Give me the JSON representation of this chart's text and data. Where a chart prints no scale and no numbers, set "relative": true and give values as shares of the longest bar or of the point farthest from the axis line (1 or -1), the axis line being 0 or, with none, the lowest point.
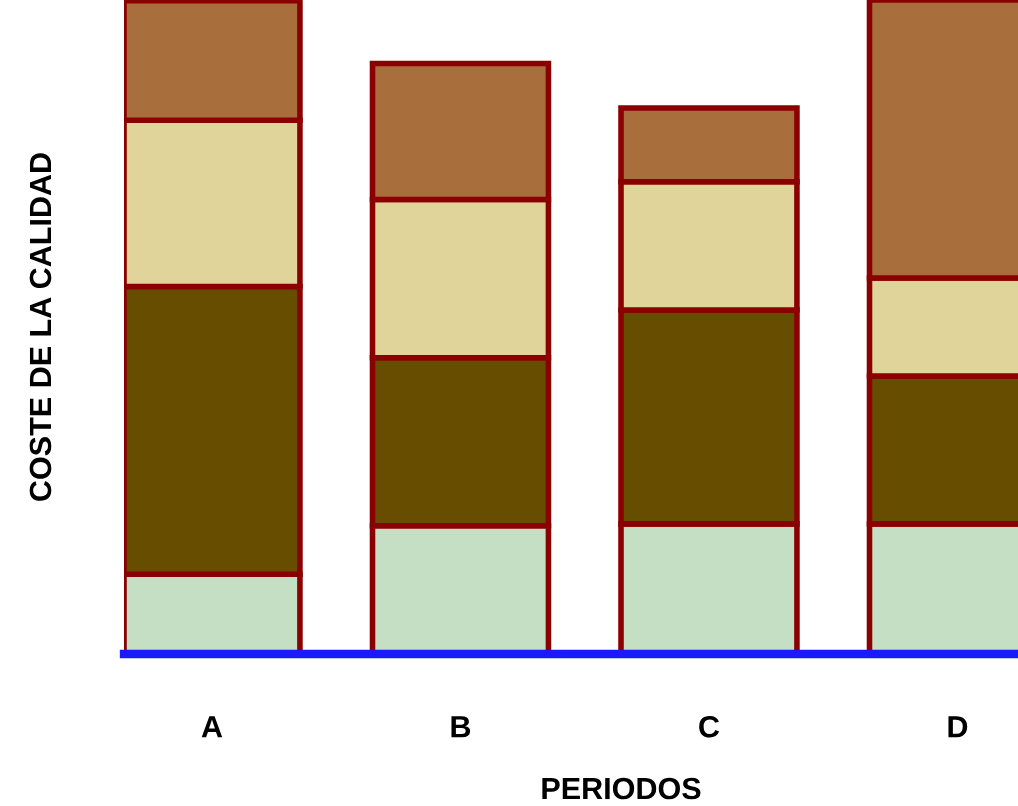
{
  "chart_data": {
    "type": "bar",
    "stacked": true,
    "relative": true,
    "xlabel": "PERIODOS",
    "ylabel": "COSTE DE LA CALIDAD",
    "categories": [
      "A",
      "B",
      "C",
      "D"
    ],
    "series": [
      {
        "color": "#c5dfc5",
        "values": [
          0.122,
          0.196,
          0.199,
          0.199
        ]
      },
      {
        "color": "#664d00",
        "values": [
          0.44,
          0.257,
          0.327,
          0.226
        ]
      },
      {
        "color": "#e0d49a",
        "values": [
          0.254,
          0.242,
          0.196,
          0.15
        ]
      },
      {
        "color": "#a86e3c",
        "values": [
          0.183,
          0.208,
          0.113,
          0.425
        ]
      }
    ],
    "grid": false,
    "legend": false
  }
}
